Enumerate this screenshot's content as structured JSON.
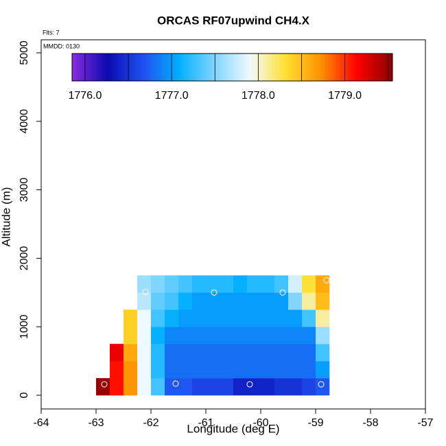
{
  "chart_data": {
    "type": "heatmap",
    "title": "ORCAS RF07upwind CH4.X",
    "flights_label": "Flts: 7",
    "date_label": "MMDD: 0130",
    "xlabel": "Longitude (deg E)",
    "ylabel": "Altitude (m)",
    "xlim": [
      -64,
      -57
    ],
    "xticks": [
      -64,
      -63,
      -62,
      -61,
      -60,
      -59,
      -58,
      -57
    ],
    "ylim": [
      -200,
      5190
    ],
    "yticks": [
      0,
      1000,
      2000,
      3000,
      4000,
      5000
    ],
    "x_edges": [
      -63.0,
      -62.75,
      -62.5,
      -62.25,
      -62.0,
      -61.75,
      -61.5,
      -61.25,
      -61.0,
      -60.75,
      -60.5,
      -60.25,
      -60.0,
      -59.75,
      -59.5,
      -59.25,
      -59.0,
      -58.75
    ],
    "y_edges": [
      0,
      250,
      500,
      750,
      1000,
      1250,
      1500,
      1750
    ],
    "values": [
      [
        1779.5,
        1779.1,
        1778.7,
        1777.9,
        1777.3,
        1776.7,
        1776.7,
        1776.6,
        1776.6,
        1776.6,
        1776.4,
        1776.4,
        1776.4,
        1776.5,
        1776.5,
        1776.6,
        1776.7
      ],
      [
        null,
        1779.1,
        1778.7,
        1777.9,
        1777.2,
        1776.8,
        1776.8,
        1776.8,
        1776.8,
        1776.8,
        1776.8,
        1776.8,
        1776.8,
        1776.8,
        1776.8,
        1776.8,
        1777.0
      ],
      [
        null,
        1779.2,
        1778.6,
        1777.9,
        1777.2,
        1776.8,
        1776.8,
        1776.8,
        1776.8,
        1776.8,
        1776.8,
        1776.8,
        1776.8,
        1776.8,
        1776.8,
        1776.8,
        1777.3
      ],
      [
        null,
        null,
        1778.4,
        1777.9,
        1777.1,
        1776.9,
        1776.9,
        1776.9,
        1776.9,
        1776.9,
        1776.9,
        1776.9,
        1776.9,
        1776.9,
        1776.9,
        1776.9,
        1777.6
      ],
      [
        null,
        null,
        1778.4,
        1777.9,
        1777.3,
        1777.1,
        1777.0,
        1777.0,
        1777.0,
        1777.0,
        1777.0,
        1777.0,
        1777.0,
        1777.0,
        1777.0,
        1777.3,
        1778.1
      ],
      [
        null,
        null,
        null,
        1777.7,
        1777.4,
        1777.3,
        1777.1,
        1777.0,
        1777.0,
        1777.0,
        1777.0,
        1777.0,
        1777.0,
        1777.0,
        1777.5,
        1778.1,
        1778.5
      ],
      [
        null,
        null,
        null,
        1777.6,
        1777.5,
        1777.4,
        1777.3,
        1777.2,
        1777.2,
        1777.2,
        1777.1,
        1777.2,
        1777.2,
        1777.3,
        1777.8,
        1778.3,
        1778.6
      ]
    ],
    "clim": [
      1775.85,
      1779.55
    ],
    "colormap": [
      "#8a2be2",
      "#0a0ab0",
      "#2050f0",
      "#00b0ff",
      "#7fd4ff",
      "#f0faff",
      "#ffe030",
      "#ff9000",
      "#ff0000",
      "#8b0000"
    ],
    "colorbar_ticks": [
      {
        "value": 1776,
        "label": "1776.0"
      },
      {
        "value": 1777,
        "label": "1777.0"
      },
      {
        "value": 1778,
        "label": "1778.0"
      },
      {
        "value": 1779,
        "label": "1779.0"
      }
    ],
    "points": {
      "x": [
        -62.1,
        -60.85,
        -59.6,
        -62.85,
        -61.55,
        -60.2,
        -58.9,
        -58.8
      ],
      "y": [
        1510,
        1500,
        1500,
        160,
        170,
        160,
        160,
        1680
      ]
    },
    "marker_color": "#ffffff"
  }
}
